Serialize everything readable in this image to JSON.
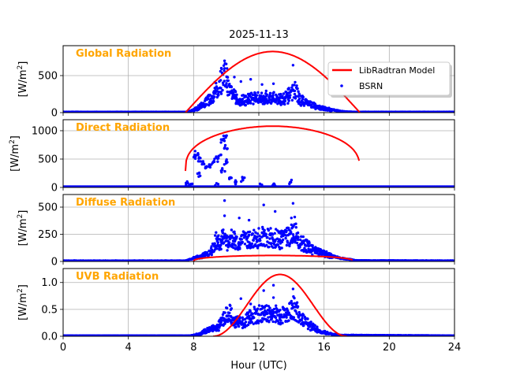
{
  "chart_data": {
    "type": "line",
    "title": "2025-11-13",
    "xlabel": "Hour (UTC)",
    "xlim": [
      0,
      24
    ],
    "xticks": [
      "0",
      "4",
      "8",
      "12",
      "16",
      "20",
      "24"
    ],
    "xtick_values": [
      0,
      4,
      8,
      12,
      16,
      20,
      24
    ],
    "grid": true,
    "colors": {
      "model": "#FF0000",
      "obs": "#0000FF",
      "panel_title": "#FFA500",
      "grid": "#b0b0b0"
    },
    "legend": {
      "position": "top-right",
      "entries": [
        "LibRadtran Model",
        "BSRN"
      ]
    },
    "panels": [
      {
        "title": "Global Radiation",
        "ylabel": "[W/m2]",
        "ylim": [
          0,
          904
        ],
        "yticks": [
          "0",
          "500"
        ],
        "ytick_values": [
          0,
          500
        ],
        "model": {
          "name": "LibRadtran Model",
          "start": 7.5,
          "end": 18.2,
          "peak_x": 12.85,
          "peak_y": 825,
          "shape": "sine"
        },
        "obs_envelope": [
          [
            0,
            8
          ],
          [
            7.5,
            8
          ],
          [
            7.8,
            20
          ],
          [
            8.2,
            60
          ],
          [
            8.6,
            120
          ],
          [
            9.0,
            200
          ],
          [
            9.3,
            280
          ],
          [
            9.6,
            420
          ],
          [
            9.8,
            500
          ],
          [
            10.0,
            540
          ],
          [
            10.2,
            300
          ],
          [
            10.6,
            220
          ],
          [
            11.0,
            180
          ],
          [
            11.5,
            230
          ],
          [
            12.0,
            210
          ],
          [
            12.5,
            230
          ],
          [
            13.0,
            210
          ],
          [
            13.5,
            200
          ],
          [
            14.0,
            280
          ],
          [
            14.2,
            340
          ],
          [
            14.5,
            200
          ],
          [
            15.0,
            140
          ],
          [
            15.5,
            90
          ],
          [
            16.0,
            60
          ],
          [
            16.5,
            40
          ],
          [
            17.0,
            20
          ],
          [
            17.5,
            10
          ],
          [
            18.0,
            8
          ],
          [
            24,
            8
          ]
        ],
        "obs_outliers": [
          [
            9.9,
            700
          ],
          [
            9.7,
            600
          ],
          [
            10.9,
            420
          ],
          [
            12.2,
            380
          ],
          [
            12.9,
            390
          ],
          [
            14.1,
            640
          ],
          [
            11.5,
            450
          ],
          [
            10.5,
            480
          ],
          [
            13.8,
            320
          ],
          [
            9.3,
            410
          ]
        ]
      },
      {
        "title": "Direct Radiation",
        "ylabel": "[W/m2]",
        "ylim": [
          0,
          1194
        ],
        "yticks": [
          "0",
          "500",
          "1000"
        ],
        "ytick_values": [
          0,
          500,
          1000
        ],
        "model": {
          "name": "LibRadtran Model",
          "start": 7.5,
          "end": 18.2,
          "peak_x": 12.85,
          "peak_y": 1080,
          "start_y": 290,
          "shape": "flat"
        },
        "obs_clusters": [
          [
            8.0,
            550
          ],
          [
            8.2,
            600
          ],
          [
            8.4,
            500
          ],
          [
            8.6,
            420
          ],
          [
            8.8,
            350
          ],
          [
            9.0,
            400
          ],
          [
            9.2,
            450
          ],
          [
            9.4,
            500
          ],
          [
            9.6,
            540
          ],
          [
            9.8,
            830
          ],
          [
            9.9,
            880
          ],
          [
            10.0,
            700
          ],
          [
            7.6,
            60
          ],
          [
            7.8,
            30
          ],
          [
            9.4,
            50
          ],
          [
            10.2,
            150
          ],
          [
            10.5,
            80
          ],
          [
            11.0,
            140
          ],
          [
            12.1,
            20
          ],
          [
            12.9,
            60
          ],
          [
            14.0,
            100
          ],
          [
            8.3,
            230
          ],
          [
            9.8,
            300
          ],
          [
            10.0,
            450
          ]
        ]
      },
      {
        "title": "Diffuse Radiation",
        "ylabel": "[W/m2]",
        "ylim": [
          0,
          616
        ],
        "yticks": [
          "0",
          "250",
          "500"
        ],
        "ytick_values": [
          0,
          250,
          500
        ],
        "model": {
          "name": "LibRadtran Model",
          "start": 8.0,
          "end": 17.8,
          "peak_x": 12.85,
          "peak_y": 55,
          "shape": "flat"
        },
        "obs_envelope": [
          [
            0,
            6
          ],
          [
            7.5,
            6
          ],
          [
            8.0,
            30
          ],
          [
            8.6,
            60
          ],
          [
            9.0,
            80
          ],
          [
            9.2,
            150
          ],
          [
            9.4,
            220
          ],
          [
            9.6,
            160
          ],
          [
            9.8,
            280
          ],
          [
            10.0,
            200
          ],
          [
            10.4,
            230
          ],
          [
            10.8,
            180
          ],
          [
            11.0,
            230
          ],
          [
            11.5,
            210
          ],
          [
            12.0,
            250
          ],
          [
            12.5,
            240
          ],
          [
            13.0,
            230
          ],
          [
            13.5,
            220
          ],
          [
            14.0,
            300
          ],
          [
            14.2,
            330
          ],
          [
            14.5,
            200
          ],
          [
            15.0,
            150
          ],
          [
            15.5,
            100
          ],
          [
            16.0,
            80
          ],
          [
            16.5,
            50
          ],
          [
            17.0,
            30
          ],
          [
            17.5,
            20
          ],
          [
            18.0,
            8
          ],
          [
            24,
            6
          ]
        ],
        "obs_outliers": [
          [
            9.9,
            560
          ],
          [
            12.3,
            520
          ],
          [
            14.1,
            535
          ],
          [
            13.0,
            460
          ],
          [
            10.8,
            400
          ],
          [
            11.4,
            380
          ],
          [
            9.9,
            420
          ],
          [
            14.0,
            400
          ]
        ]
      },
      {
        "title": "UVB Radiation",
        "ylabel": "[W/m2]",
        "ylim": [
          0,
          1.26
        ],
        "yticks": [
          "0.0",
          "0.5",
          "1.0"
        ],
        "ytick_values": [
          0,
          0.5,
          1.0
        ],
        "model": {
          "name": "LibRadtran Model",
          "start": 9.2,
          "end": 17.4,
          "peak_x": 12.85,
          "peak_y": 1.15,
          "shape": "bell"
        },
        "obs_envelope": [
          [
            0,
            0.01
          ],
          [
            7.8,
            0.01
          ],
          [
            8.4,
            0.05
          ],
          [
            8.8,
            0.12
          ],
          [
            9.2,
            0.18
          ],
          [
            9.4,
            0.15
          ],
          [
            9.8,
            0.35
          ],
          [
            10.2,
            0.48
          ],
          [
            10.5,
            0.28
          ],
          [
            11.0,
            0.3
          ],
          [
            11.5,
            0.4
          ],
          [
            12.0,
            0.45
          ],
          [
            12.5,
            0.45
          ],
          [
            13.0,
            0.45
          ],
          [
            13.5,
            0.42
          ],
          [
            14.0,
            0.55
          ],
          [
            14.2,
            0.6
          ],
          [
            14.5,
            0.4
          ],
          [
            15.0,
            0.25
          ],
          [
            15.5,
            0.15
          ],
          [
            16.0,
            0.08
          ],
          [
            16.5,
            0.04
          ],
          [
            17.0,
            0.02
          ],
          [
            24,
            0.01
          ]
        ],
        "obs_outliers": [
          [
            10.9,
            0.7
          ],
          [
            12.3,
            0.85
          ],
          [
            12.9,
            0.72
          ],
          [
            14.1,
            0.88
          ],
          [
            12.9,
            0.95
          ],
          [
            11.5,
            0.6
          ]
        ]
      }
    ]
  }
}
